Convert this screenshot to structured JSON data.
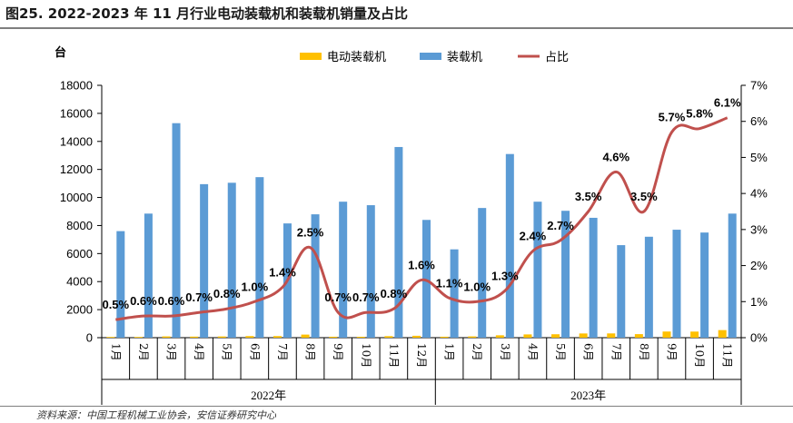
{
  "header": {
    "title": "图25. 2022-2023 年 11 月行业电动装载机和装载机销量及占比",
    "source": "资料来源：中国工程机械工业协会，安信证券研究中心"
  },
  "colors": {
    "electric": "#FFC000",
    "loader": "#5B9BD5",
    "ratio": "#C0504D"
  },
  "chart_data": {
    "type": "bar",
    "unit_label": "台",
    "categories": [
      "1月",
      "2月",
      "3月",
      "4月",
      "5月",
      "6月",
      "7月",
      "8月",
      "9月",
      "10月",
      "11月",
      "12月",
      "1月",
      "2月",
      "3月",
      "4月",
      "5月",
      "6月",
      "7月",
      "8月",
      "9月",
      "10月",
      "11月"
    ],
    "year_groups": [
      {
        "label": "2022年",
        "count": 12
      },
      {
        "label": "2023年",
        "count": 11
      }
    ],
    "series": [
      {
        "name": "电动装载机",
        "type": "bar",
        "axis": "left",
        "values": [
          38,
          53,
          92,
          77,
          88,
          115,
          114,
          220,
          68,
          66,
          109,
          135,
          69,
          92,
          170,
          233,
          244,
          300,
          304,
          252,
          439,
          435,
          540
        ]
      },
      {
        "name": "装载机",
        "type": "bar",
        "axis": "left",
        "values": [
          7600,
          8850,
          15300,
          10950,
          11050,
          11450,
          8150,
          8800,
          9700,
          9450,
          13600,
          8400,
          6300,
          9250,
          13100,
          9700,
          9050,
          8550,
          6600,
          7200,
          7700,
          7500,
          8850
        ]
      },
      {
        "name": "占比",
        "type": "line",
        "axis": "right",
        "values": [
          0.5,
          0.6,
          0.6,
          0.7,
          0.8,
          1.0,
          1.4,
          2.5,
          0.7,
          0.7,
          0.8,
          1.6,
          1.1,
          1.0,
          1.3,
          2.4,
          2.7,
          3.5,
          4.6,
          3.5,
          5.7,
          5.8,
          6.1
        ],
        "labels": [
          "0.5%",
          "0.6%",
          "0.6%",
          "0.7%",
          "0.8%",
          "1.0%",
          "1.4%",
          "2.5%",
          "0.7%",
          "0.7%",
          "0.8%",
          "1.6%",
          "1.1%",
          "1.0%",
          "1.3%",
          "2.4%",
          "2.7%",
          "3.5%",
          "4.6%",
          "3.5%",
          "5.7%",
          "5.8%",
          "6.1%"
        ]
      }
    ],
    "y_left": {
      "min": 0,
      "max": 18000,
      "step": 2000,
      "ticks": [
        "0",
        "2000",
        "4000",
        "6000",
        "8000",
        "10000",
        "12000",
        "14000",
        "16000",
        "18000"
      ]
    },
    "y_right": {
      "min": 0,
      "max": 7,
      "step": 1,
      "ticks": [
        "0%",
        "1%",
        "2%",
        "3%",
        "4%",
        "5%",
        "6%",
        "7%"
      ]
    },
    "legend_position": "top-center",
    "grid": false
  }
}
